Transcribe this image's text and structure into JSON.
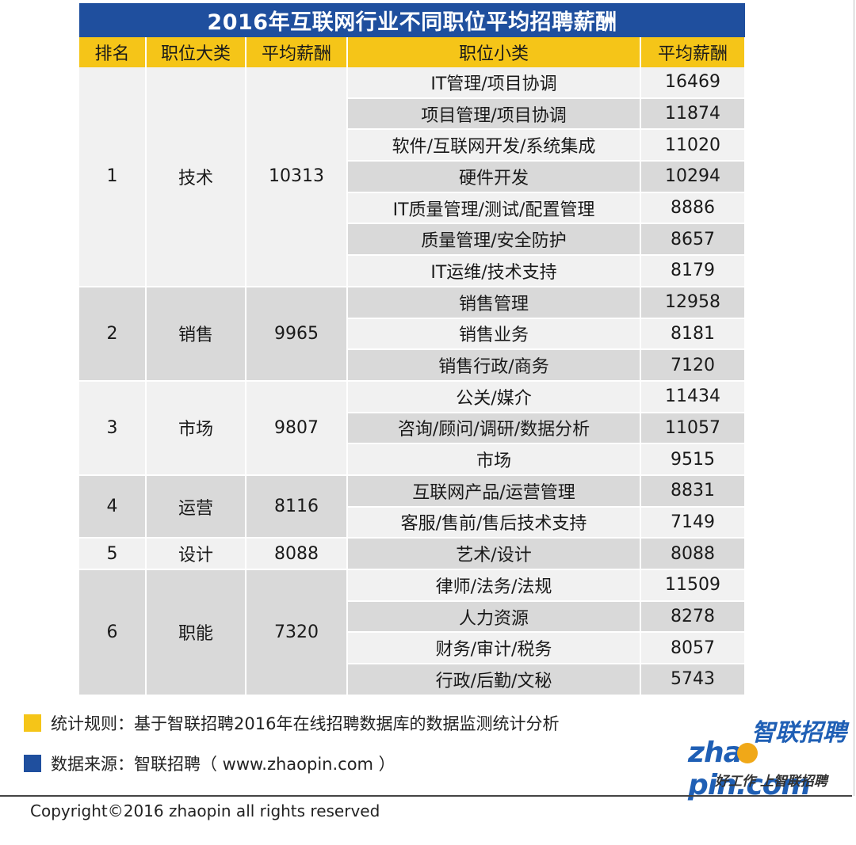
{
  "title": "2016年互联网行业不同职位平均招聘薪酬",
  "headers": {
    "rank": "排名",
    "category": "职位大类",
    "category_salary": "平均薪酬",
    "subcategory": "职位小类",
    "sub_salary": "平均薪酬"
  },
  "groups": [
    {
      "rank": "1",
      "category": "技术",
      "salary": "10313",
      "items": [
        {
          "name": "IT管理/项目协调",
          "salary": "16469"
        },
        {
          "name": "项目管理/项目协调",
          "salary": "11874"
        },
        {
          "name": "软件/互联网开发/系统集成",
          "salary": "11020"
        },
        {
          "name": "硬件开发",
          "salary": "10294"
        },
        {
          "name": "IT质量管理/测试/配置管理",
          "salary": "8886"
        },
        {
          "name": "质量管理/安全防护",
          "salary": "8657"
        },
        {
          "name": "IT运维/技术支持",
          "salary": "8179"
        }
      ]
    },
    {
      "rank": "2",
      "category": "销售",
      "salary": "9965",
      "items": [
        {
          "name": "销售管理",
          "salary": "12958"
        },
        {
          "name": "销售业务",
          "salary": "8181"
        },
        {
          "name": "销售行政/商务",
          "salary": "7120"
        }
      ]
    },
    {
      "rank": "3",
      "category": "市场",
      "salary": "9807",
      "items": [
        {
          "name": "公关/媒介",
          "salary": "11434"
        },
        {
          "name": "咨询/顾问/调研/数据分析",
          "salary": "11057"
        },
        {
          "name": "市场",
          "salary": "9515"
        }
      ]
    },
    {
      "rank": "4",
      "category": "运营",
      "salary": "8116",
      "items": [
        {
          "name": "互联网产品/运营管理",
          "salary": "8831"
        },
        {
          "name": "客服/售前/售后技术支持",
          "salary": "7149"
        }
      ]
    },
    {
      "rank": "5",
      "category": "设计",
      "salary": "8088",
      "items": [
        {
          "name": "艺术/设计",
          "salary": "8088"
        }
      ]
    },
    {
      "rank": "6",
      "category": "职能",
      "salary": "7320",
      "items": [
        {
          "name": "律师/法务/法规",
          "salary": "11509"
        },
        {
          "name": "人力资源",
          "salary": "8278"
        },
        {
          "name": "财务/审计/税务",
          "salary": "8057"
        },
        {
          "name": "行政/后勤/文秘",
          "salary": "5743"
        }
      ]
    }
  ],
  "notes": {
    "rule": "统计规则：基于智联招聘2016年在线招聘数据库的数据监测统计分析",
    "source": "数据来源：智联招聘（ www.zhaopin.com ）"
  },
  "logo": {
    "cn": "智联招聘",
    "en_left": "zha",
    "en_right": "pin.com",
    "slogan": "好工作  上智联招聘"
  },
  "copyright": "Copyright©2016 zhaopin all rights reserved",
  "colors": {
    "title_bg": "#1f4f9e",
    "header_bg": "#f5c518",
    "row_light": "#f1f1f1",
    "row_dark": "#d9d9d9",
    "legend_yellow": "#f5c518",
    "legend_blue": "#1f4f9e"
  }
}
